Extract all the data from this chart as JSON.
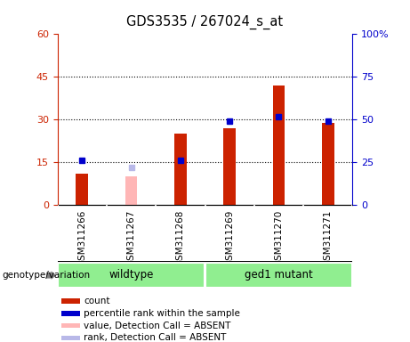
{
  "title": "GDS3535 / 267024_s_at",
  "samples": [
    "GSM311266",
    "GSM311267",
    "GSM311268",
    "GSM311269",
    "GSM311270",
    "GSM311271"
  ],
  "count_values": [
    11,
    null,
    25,
    27,
    42,
    29
  ],
  "count_absent_values": [
    null,
    10,
    null,
    null,
    null,
    null
  ],
  "percentile_values": [
    26,
    null,
    26,
    49,
    52,
    49
  ],
  "percentile_absent_values": [
    null,
    22,
    null,
    null,
    null,
    null
  ],
  "left_yticks": [
    0,
    15,
    30,
    45,
    60
  ],
  "right_yticks": [
    0,
    25,
    50,
    75,
    100
  ],
  "ylim_left": [
    0,
    60
  ],
  "ylim_right": [
    0,
    100
  ],
  "count_color": "#cc2200",
  "count_absent_color": "#ffb6b6",
  "percentile_color": "#0000cc",
  "percentile_absent_color": "#b8b8e8",
  "bg_color": "#c8c8c8",
  "plot_bg_color": "#ffffff",
  "left_axis_color": "#cc2200",
  "right_axis_color": "#0000cc",
  "legend_items": [
    {
      "label": "count",
      "color": "#cc2200"
    },
    {
      "label": "percentile rank within the sample",
      "color": "#0000cc"
    },
    {
      "label": "value, Detection Call = ABSENT",
      "color": "#ffb6b6"
    },
    {
      "label": "rank, Detection Call = ABSENT",
      "color": "#b8b8e8"
    }
  ],
  "bar_width": 0.25
}
